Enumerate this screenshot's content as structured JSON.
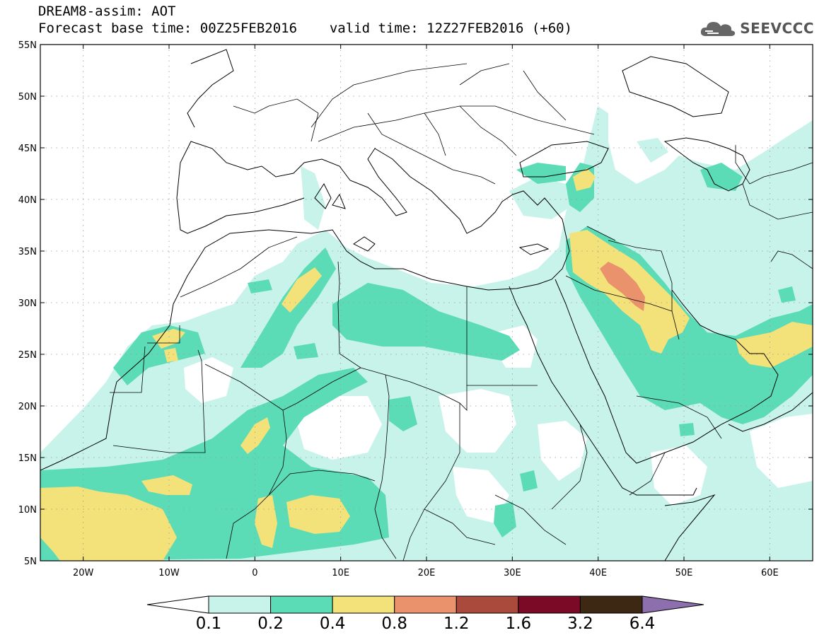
{
  "header": {
    "line1": "DREAM8-assim: AOT",
    "base_label": "Forecast base time:",
    "base_time": "00Z25FEB2016",
    "valid_label": "valid time:",
    "valid_time": "12Z27FEB2016 (+60)"
  },
  "brand": {
    "name": "SEEVCCC",
    "icon": "cloud-logo-icon"
  },
  "map": {
    "lon_range": [
      -25,
      65
    ],
    "lat_range": [
      5,
      55
    ],
    "lat_ticks": [
      {
        "value": 55,
        "label": "55N"
      },
      {
        "value": 50,
        "label": "50N"
      },
      {
        "value": 45,
        "label": "45N"
      },
      {
        "value": 40,
        "label": "40N"
      },
      {
        "value": 35,
        "label": "35N"
      },
      {
        "value": 30,
        "label": "30N"
      },
      {
        "value": 25,
        "label": "25N"
      },
      {
        "value": 20,
        "label": "20N"
      },
      {
        "value": 15,
        "label": "15N"
      },
      {
        "value": 10,
        "label": "10N"
      },
      {
        "value": 5,
        "label": "5N"
      }
    ],
    "lon_ticks": [
      {
        "value": -20,
        "label": "20W"
      },
      {
        "value": -10,
        "label": "10W"
      },
      {
        "value": 0,
        "label": "0"
      },
      {
        "value": 10,
        "label": "10E"
      },
      {
        "value": 20,
        "label": "20E"
      },
      {
        "value": 30,
        "label": "30E"
      },
      {
        "value": 40,
        "label": "40E"
      },
      {
        "value": 50,
        "label": "50E"
      },
      {
        "value": 60,
        "label": "60E"
      }
    ],
    "grid": "dotted"
  },
  "colorbar": {
    "colors": [
      "#c8f3ea",
      "#5cdcb6",
      "#f3e27a",
      "#e9926c",
      "#aa4a3c",
      "#7a0a26",
      "#3d2814"
    ],
    "under_color": "#ffffff",
    "over_color": "#8e6fae",
    "labels": [
      "0.1",
      "0.2",
      "0.4",
      "0.8",
      "1.2",
      "1.6",
      "3.2",
      "6.4"
    ]
  }
}
